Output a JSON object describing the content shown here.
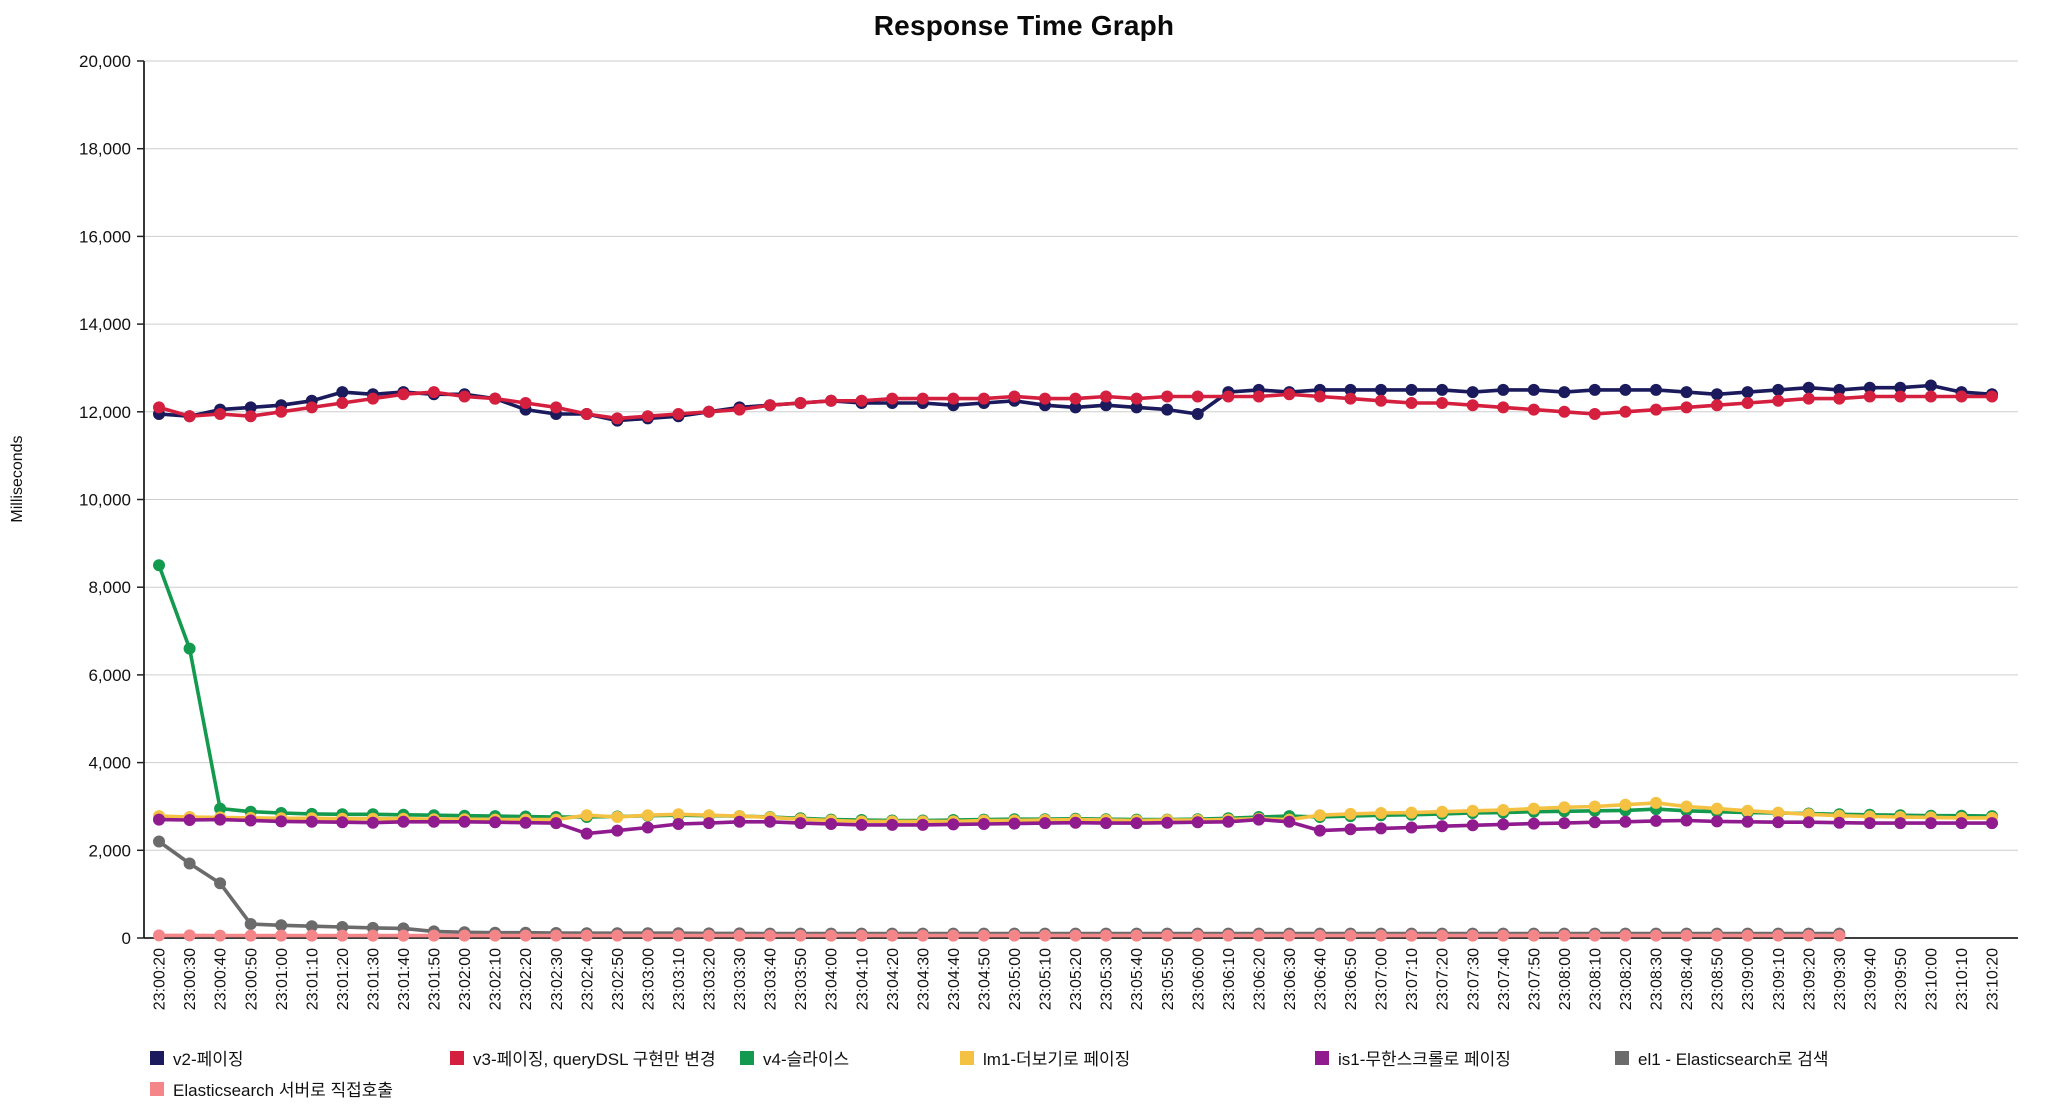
{
  "title": "Response Time Graph",
  "ylabel": "Milliseconds",
  "chart_data": {
    "type": "line",
    "title": "Response Time Graph",
    "xlabel": "",
    "ylabel": "Milliseconds",
    "ylim": [
      0,
      20000
    ],
    "y_tick_step": 2000,
    "grid": "horizontal",
    "legend_position": "bottom",
    "x_tick_rotation": -90,
    "categories": [
      "23:00:20",
      "23:00:30",
      "23:00:40",
      "23:00:50",
      "23:01:00",
      "23:01:10",
      "23:01:20",
      "23:01:30",
      "23:01:40",
      "23:01:50",
      "23:02:00",
      "23:02:10",
      "23:02:20",
      "23:02:30",
      "23:02:40",
      "23:02:50",
      "23:03:00",
      "23:03:10",
      "23:03:20",
      "23:03:30",
      "23:03:40",
      "23:03:50",
      "23:04:00",
      "23:04:10",
      "23:04:20",
      "23:04:30",
      "23:04:40",
      "23:04:50",
      "23:05:00",
      "23:05:10",
      "23:05:20",
      "23:05:30",
      "23:05:40",
      "23:05:50",
      "23:06:00",
      "23:06:10",
      "23:06:20",
      "23:06:30",
      "23:06:40",
      "23:06:50",
      "23:07:00",
      "23:07:10",
      "23:07:20",
      "23:07:30",
      "23:07:40",
      "23:07:50",
      "23:08:00",
      "23:08:10",
      "23:08:20",
      "23:08:30",
      "23:08:40",
      "23:08:50",
      "23:09:00",
      "23:09:10",
      "23:09:20",
      "23:09:30",
      "23:09:40",
      "23:09:50",
      "23:10:00",
      "23:10:10",
      "23:10:20"
    ],
    "series": [
      {
        "name": "v2-페이징",
        "color": "#1a1a5c",
        "values": [
          11950,
          11900,
          12050,
          12100,
          12150,
          12250,
          12450,
          12400,
          12450,
          12400,
          12400,
          12300,
          12050,
          11950,
          11950,
          11800,
          11850,
          11900,
          12000,
          12100,
          12150,
          12200,
          12250,
          12200,
          12200,
          12200,
          12150,
          12200,
          12250,
          12150,
          12100,
          12150,
          12100,
          12050,
          11950,
          12450,
          12500,
          12450,
          12500,
          12500,
          12500,
          12500,
          12500,
          12450,
          12500,
          12500,
          12450,
          12500,
          12500,
          12500,
          12450,
          12400,
          12450,
          12500,
          12550,
          12500,
          12550,
          12550,
          12600,
          12450,
          12400
        ]
      },
      {
        "name": "v3-페이징, queryDSL 구현만 변경",
        "color": "#d41f3f",
        "values": [
          12100,
          11900,
          11950,
          11900,
          12000,
          12100,
          12200,
          12300,
          12400,
          12450,
          12350,
          12300,
          12200,
          12100,
          11950,
          11850,
          11900,
          11950,
          12000,
          12050,
          12150,
          12200,
          12250,
          12250,
          12300,
          12300,
          12300,
          12300,
          12350,
          12300,
          12300,
          12350,
          12300,
          12350,
          12350,
          12350,
          12350,
          12400,
          12350,
          12300,
          12250,
          12200,
          12200,
          12150,
          12100,
          12050,
          12000,
          11950,
          12000,
          12050,
          12100,
          12150,
          12200,
          12250,
          12300,
          12300,
          12350,
          12350,
          12350,
          12350,
          12350
        ]
      },
      {
        "name": "v4-슬라이스",
        "color": "#149a4f",
        "values": [
          8500,
          6600,
          2950,
          2880,
          2850,
          2830,
          2820,
          2820,
          2810,
          2800,
          2790,
          2780,
          2770,
          2760,
          2760,
          2770,
          2790,
          2800,
          2790,
          2780,
          2760,
          2730,
          2700,
          2690,
          2680,
          2680,
          2690,
          2700,
          2710,
          2710,
          2720,
          2710,
          2700,
          2700,
          2710,
          2730,
          2760,
          2780,
          2760,
          2780,
          2800,
          2810,
          2830,
          2850,
          2860,
          2880,
          2890,
          2900,
          2910,
          2940,
          2900,
          2880,
          2860,
          2850,
          2840,
          2820,
          2810,
          2800,
          2790,
          2790,
          2780
        ]
      },
      {
        "name": "lm1-더보기로 페이징",
        "color": "#f5c142",
        "values": [
          2780,
          2760,
          2750,
          2740,
          2730,
          2730,
          2720,
          2720,
          2720,
          2710,
          2710,
          2700,
          2700,
          2700,
          2800,
          2760,
          2800,
          2820,
          2800,
          2780,
          2750,
          2710,
          2680,
          2660,
          2660,
          2660,
          2660,
          2680,
          2680,
          2690,
          2700,
          2690,
          2680,
          2690,
          2690,
          2700,
          2720,
          2700,
          2800,
          2830,
          2850,
          2860,
          2880,
          2900,
          2920,
          2950,
          2980,
          3000,
          3040,
          3080,
          3000,
          2950,
          2900,
          2860,
          2820,
          2790,
          2770,
          2760,
          2750,
          2740,
          2740
        ]
      },
      {
        "name": "is1-무한스크롤로 페이징",
        "color": "#8f1b8f",
        "values": [
          2700,
          2690,
          2700,
          2680,
          2660,
          2650,
          2640,
          2630,
          2650,
          2650,
          2650,
          2640,
          2630,
          2620,
          2380,
          2450,
          2520,
          2600,
          2620,
          2650,
          2650,
          2620,
          2600,
          2580,
          2580,
          2580,
          2590,
          2600,
          2610,
          2620,
          2630,
          2620,
          2620,
          2630,
          2640,
          2650,
          2700,
          2650,
          2450,
          2480,
          2500,
          2520,
          2550,
          2570,
          2590,
          2610,
          2620,
          2640,
          2650,
          2670,
          2680,
          2660,
          2650,
          2640,
          2640,
          2630,
          2620,
          2620,
          2620,
          2620,
          2620
        ]
      },
      {
        "name": "el1 - Elasticsearch로 검색",
        "color": "#6b6b6b",
        "values": [
          2200,
          1700,
          1250,
          320,
          290,
          270,
          250,
          230,
          220,
          150,
          130,
          120,
          120,
          115,
          110,
          110,
          110,
          110,
          105,
          105,
          100,
          100,
          100,
          100,
          100,
          100,
          100,
          100,
          100,
          100,
          100,
          100,
          100,
          100,
          100,
          100,
          100,
          100,
          100,
          100,
          100,
          100,
          100,
          100,
          100,
          100,
          100,
          100,
          100,
          100,
          100,
          100,
          100,
          100,
          100,
          100,
          null,
          null,
          null,
          null,
          null
        ]
      },
      {
        "name": "Elasticsearch 서버로 직접호출",
        "color": "#f4868a",
        "values": [
          60,
          60,
          55,
          55,
          55,
          55,
          55,
          55,
          55,
          55,
          55,
          55,
          55,
          55,
          55,
          55,
          55,
          55,
          55,
          55,
          55,
          55,
          55,
          55,
          55,
          55,
          55,
          55,
          55,
          55,
          55,
          55,
          55,
          55,
          55,
          55,
          55,
          55,
          55,
          55,
          55,
          55,
          55,
          55,
          55,
          55,
          55,
          55,
          55,
          55,
          55,
          55,
          55,
          55,
          55,
          55,
          null,
          null,
          null,
          null,
          null
        ]
      }
    ]
  }
}
